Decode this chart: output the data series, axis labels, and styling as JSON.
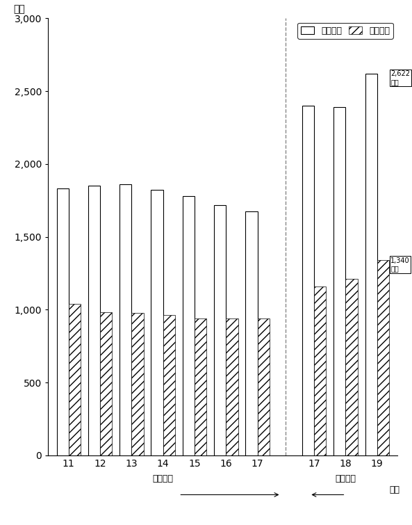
{
  "ylabel": "億円",
  "xlabel_right": "年度",
  "categories_old": [
    "11",
    "12",
    "13",
    "14",
    "15",
    "16",
    "17"
  ],
  "categories_new": [
    "17",
    "18",
    "19"
  ],
  "total_revenue_old": [
    1830,
    1850,
    1860,
    1825,
    1778,
    1720,
    1675
  ],
  "tax_revenue_old": [
    1040,
    985,
    977,
    963,
    940,
    940,
    940
  ],
  "total_revenue_new": [
    2400,
    2390,
    2622
  ],
  "tax_revenue_new": [
    1160,
    1210,
    1340
  ],
  "ylim": [
    0,
    3000
  ],
  "yticks": [
    0,
    500,
    1000,
    1500,
    2000,
    2500,
    3000
  ],
  "annotation_total": "2,622\n億円",
  "annotation_tax": "1,340\n億円",
  "legend_labels": [
    "歳入総額",
    "市税収入"
  ],
  "old_label": "旧浜松市",
  "new_label": "新浜松市",
  "bar_width": 0.38,
  "bg_color": "#ffffff",
  "bar_total_color": "#ffffff",
  "bar_total_edge": "#000000",
  "bar_tax_hatch": "///",
  "bar_tax_edge": "#000000",
  "bar_tax_facecolor": "#ffffff",
  "separator_color": "#888888",
  "grid_color": "#dddddd"
}
